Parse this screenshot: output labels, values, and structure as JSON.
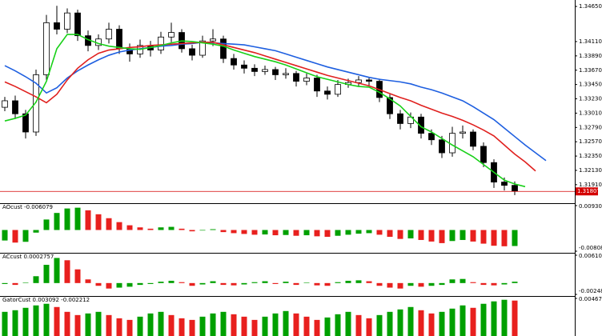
{
  "chart_data": [
    {
      "type": "candlestick",
      "open": [
        1.331,
        1.332,
        1.33,
        1.3272,
        1.336,
        1.344,
        1.343,
        1.3455,
        1.342,
        1.3405,
        1.3415,
        1.343,
        1.34,
        1.3392,
        1.3405,
        1.3398,
        1.3418,
        1.3425,
        1.34,
        1.339,
        1.3412,
        1.3415,
        1.3385,
        1.3375,
        1.337,
        1.3365,
        1.3368,
        1.336,
        1.3362,
        1.335,
        1.3355,
        1.3335,
        1.333,
        1.3345,
        1.3348,
        1.3352,
        1.335,
        1.3325,
        1.33,
        1.3285,
        1.3295,
        1.327,
        1.326,
        1.324,
        1.327,
        1.3272,
        1.325,
        1.3225,
        1.3195,
        1.319
      ],
      "high": [
        1.3326,
        1.3328,
        1.3306,
        1.3368,
        1.3452,
        1.3466,
        1.3462,
        1.346,
        1.3428,
        1.3422,
        1.344,
        1.3436,
        1.3408,
        1.3414,
        1.3412,
        1.3426,
        1.344,
        1.343,
        1.3406,
        1.342,
        1.343,
        1.342,
        1.3392,
        1.3382,
        1.3376,
        1.3374,
        1.3372,
        1.337,
        1.3366,
        1.3362,
        1.336,
        1.3342,
        1.3352,
        1.3354,
        1.3358,
        1.3356,
        1.3354,
        1.333,
        1.3306,
        1.3302,
        1.33,
        1.3276,
        1.3266,
        1.328,
        1.3282,
        1.3276,
        1.3256,
        1.323,
        1.3202,
        1.3196
      ],
      "low": [
        1.3304,
        1.3292,
        1.3262,
        1.3266,
        1.3352,
        1.3422,
        1.3424,
        1.3412,
        1.3396,
        1.3398,
        1.3408,
        1.3392,
        1.338,
        1.3386,
        1.3388,
        1.3392,
        1.341,
        1.3394,
        1.3382,
        1.3386,
        1.3404,
        1.3378,
        1.3368,
        1.3362,
        1.3358,
        1.336,
        1.3352,
        1.3354,
        1.3342,
        1.3344,
        1.3326,
        1.3322,
        1.3326,
        1.334,
        1.3342,
        1.3344,
        1.3318,
        1.3292,
        1.3276,
        1.3278,
        1.3262,
        1.3252,
        1.3232,
        1.3234,
        1.3262,
        1.3244,
        1.3218,
        1.3186,
        1.3182,
        1.3175
      ],
      "close": [
        1.332,
        1.33,
        1.3272,
        1.336,
        1.344,
        1.343,
        1.3455,
        1.342,
        1.3405,
        1.3415,
        1.343,
        1.34,
        1.3392,
        1.3405,
        1.3398,
        1.3418,
        1.3425,
        1.34,
        1.339,
        1.3412,
        1.3415,
        1.3385,
        1.3375,
        1.337,
        1.3365,
        1.3368,
        1.336,
        1.3362,
        1.335,
        1.3355,
        1.3335,
        1.333,
        1.3345,
        1.3348,
        1.3352,
        1.335,
        1.3325,
        1.33,
        1.3285,
        1.3295,
        1.327,
        1.326,
        1.324,
        1.327,
        1.3272,
        1.325,
        1.3225,
        1.3195,
        1.319,
        1.3181
      ],
      "series": [
        {
          "color": "#1e5fe0",
          "values": [
            1.3374,
            1.3366,
            1.3357,
            1.3347,
            1.3332,
            1.334,
            1.3355,
            1.3366,
            1.3375,
            1.3383,
            1.339,
            1.3395,
            1.3398,
            1.34,
            1.3402,
            1.3404,
            1.3405,
            1.3407,
            1.3408,
            1.341,
            1.3409,
            1.3408,
            1.3407,
            1.3406,
            1.3403,
            1.34,
            1.3397,
            1.3392,
            1.3387,
            1.3382,
            1.3377,
            1.3372,
            1.3368,
            1.3364,
            1.336,
            1.3356,
            1.3353,
            1.3351,
            1.3349,
            1.3346,
            1.3341,
            1.3337,
            1.3332,
            1.3326,
            1.332,
            1.3311,
            1.3301,
            1.3291,
            1.3278,
            1.3265,
            1.3252,
            1.324,
            1.3228
          ]
        },
        {
          "color": "#e0201e",
          "values": [
            1.3349,
            1.3342,
            1.3334,
            1.3326,
            1.3317,
            1.333,
            1.3352,
            1.337,
            1.3383,
            1.3393,
            1.3398,
            1.34,
            1.3402,
            1.3403,
            1.3405,
            1.3406,
            1.3407,
            1.3408,
            1.3409,
            1.341,
            1.341,
            1.3406,
            1.3402,
            1.3398,
            1.3394,
            1.3389,
            1.3384,
            1.3379,
            1.3374,
            1.3369,
            1.3364,
            1.3359,
            1.3355,
            1.3351,
            1.3347,
            1.3343,
            1.3337,
            1.3331,
            1.3325,
            1.332,
            1.3313,
            1.3307,
            1.3301,
            1.3296,
            1.329,
            1.3283,
            1.3275,
            1.3266,
            1.3252,
            1.3238,
            1.3226,
            1.3212
          ]
        },
        {
          "color": "#18d018",
          "values": [
            1.3289,
            1.3293,
            1.3298,
            1.3318,
            1.335,
            1.34,
            1.3422,
            1.3422,
            1.3414,
            1.3408,
            1.3404,
            1.3402,
            1.34,
            1.3399,
            1.3402,
            1.3405,
            1.3409,
            1.3412,
            1.3411,
            1.3409,
            1.3407,
            1.3404,
            1.3398,
            1.3393,
            1.3388,
            1.3384,
            1.338,
            1.3375,
            1.3369,
            1.3363,
            1.3357,
            1.3353,
            1.3349,
            1.3345,
            1.3342,
            1.3341,
            1.3333,
            1.3323,
            1.3312,
            1.3296,
            1.328,
            1.3272,
            1.3262,
            1.3252,
            1.3243,
            1.3234,
            1.3222,
            1.321,
            1.3198,
            1.3192,
            1.3188
          ]
        }
      ],
      "last_price": 1.31807,
      "ylim": [
        1.3165,
        1.347
      ],
      "yticks": [
        {
          "value": 1.3465,
          "label": "1.34650"
        },
        {
          "value": 1.3411,
          "label": "1.34110"
        },
        {
          "value": 1.3389,
          "label": "1.33890"
        },
        {
          "value": 1.3367,
          "label": "1.33670"
        },
        {
          "value": 1.3345,
          "label": "1.33450"
        },
        {
          "value": 1.3323,
          "label": "1.33230"
        },
        {
          "value": 1.3301,
          "label": "1.33010"
        },
        {
          "value": 1.3279,
          "label": "1.32790"
        },
        {
          "value": 1.3257,
          "label": "1.32570"
        },
        {
          "value": 1.3235,
          "label": "1.32350"
        },
        {
          "value": 1.3213,
          "label": "1.32130"
        },
        {
          "value": 1.3191,
          "label": "1.31910"
        }
      ],
      "up_color": "#ffffff",
      "down_color": "#000000",
      "price_line_color": "#d40000"
    },
    {
      "type": "bar",
      "title": "AOcust -0.006079",
      "values": [
        -0.004,
        -0.0048,
        -0.0045,
        -0.001,
        0.004,
        0.0065,
        0.0082,
        0.0085,
        0.0075,
        0.006,
        0.0045,
        0.003,
        0.0018,
        0.001,
        0.0005,
        0.001,
        0.0012,
        0.0005,
        -0.0005,
        -0.0002,
        0.0003,
        -0.0008,
        -0.0012,
        -0.0015,
        -0.0018,
        -0.0017,
        -0.002,
        -0.0019,
        -0.0022,
        -0.002,
        -0.0024,
        -0.0026,
        -0.0022,
        -0.0018,
        -0.0014,
        -0.0012,
        -0.0018,
        -0.0026,
        -0.0034,
        -0.0032,
        -0.0038,
        -0.0044,
        -0.005,
        -0.0042,
        -0.0038,
        -0.0044,
        -0.0052,
        -0.006,
        -0.0062,
        -0.0061
      ],
      "ylim": [
        -0.008081,
        0.0093
      ],
      "yticks": [
        {
          "value": 0.0093,
          "label": "0.009300"
        },
        -0.008081
      ],
      "up_color": "#00a000",
      "down_color": "#e8201e"
    },
    {
      "type": "bar",
      "title": "ACcust 0.0002757",
      "values": [
        -0.0002,
        -0.0004,
        0.0001,
        0.0015,
        0.004,
        0.0055,
        0.005,
        0.003,
        0.0008,
        -0.0006,
        -0.0012,
        -0.001,
        -0.0008,
        -0.0004,
        -0.0002,
        0.0003,
        0.0005,
        0.0002,
        -0.0006,
        -0.0003,
        0.0004,
        -0.0004,
        -0.0005,
        -0.0003,
        0.0002,
        0.0004,
        -0.0002,
        0.0003,
        -0.0004,
        0.0001,
        -0.0005,
        -0.0006,
        0.0002,
        0.0005,
        0.0006,
        0.0004,
        -0.0006,
        -0.001,
        -0.0012,
        -0.0006,
        -0.0008,
        -0.0006,
        -0.0004,
        0.0008,
        0.0009,
        0.0002,
        -0.0004,
        -0.0005,
        -0.0003,
        0.0003
      ],
      "ylim": [
        -0.0024839,
        0.0061054
      ],
      "yticks": [
        0.0061054,
        -0.0024839
      ],
      "up_color": "#00a000",
      "down_color": "#e8201e"
    },
    {
      "type": "bar",
      "title": "GatorCust 0.003092 -0.002212",
      "values": [
        0.003,
        0.0032,
        0.0035,
        0.0038,
        0.004,
        0.0036,
        0.003,
        0.0026,
        0.0028,
        0.003,
        0.0026,
        0.0022,
        0.002,
        0.0024,
        0.0028,
        0.003,
        0.0026,
        0.0022,
        0.002,
        0.0024,
        0.0028,
        0.003,
        0.0027,
        0.0024,
        0.002,
        0.0024,
        0.0028,
        0.0031,
        0.0028,
        0.0024,
        0.002,
        0.0023,
        0.0027,
        0.003,
        0.0026,
        0.0022,
        0.0026,
        0.003,
        0.0033,
        0.0036,
        0.0032,
        0.0028,
        0.003,
        0.0034,
        0.0038,
        0.0035,
        0.004,
        0.0043,
        0.0045,
        0.0044
      ],
      "ylim": [
        0,
        0.00467
      ],
      "yticks": [
        {
          "value": 0.00467,
          "label": "0.004670"
        }
      ],
      "up_color": "#00a000",
      "down_color": "#e8201e"
    }
  ]
}
